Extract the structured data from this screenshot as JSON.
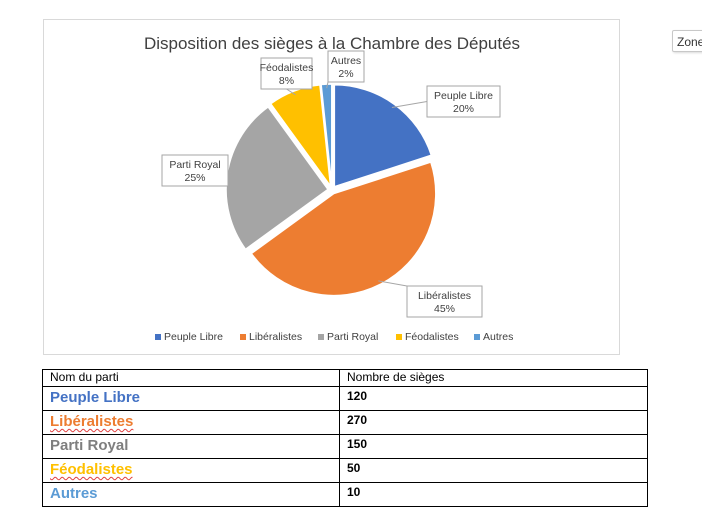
{
  "side_tab": {
    "label": "Zone"
  },
  "chart_data": {
    "type": "pie",
    "title": "Disposition des sièges à la Chambre des Députés",
    "categories": [
      "Peuple Libre",
      "Libéralistes",
      "Parti Royal",
      "Féodalistes",
      "Autres"
    ],
    "values": [
      120,
      270,
      150,
      50,
      10
    ],
    "percent_labels": [
      "20%",
      "45%",
      "25%",
      "8%",
      "2%"
    ],
    "colors": [
      "#4472c4",
      "#ed7d31",
      "#a5a5a5",
      "#ffc000",
      "#5b9bd5"
    ],
    "exploded": true,
    "legend_position": "bottom"
  },
  "table": {
    "headers": [
      "Nom du parti",
      "Nombre de sièges"
    ],
    "rows": [
      {
        "name": "Peuple Libre",
        "seats": "120",
        "color": "#4472c4",
        "spellcheck": false
      },
      {
        "name": "Libéralistes",
        "seats": "270",
        "color": "#ed7d31",
        "spellcheck": true
      },
      {
        "name": "Parti Royal",
        "seats": "150",
        "color": "#7f7f7f",
        "spellcheck": false
      },
      {
        "name": "Féodalistes",
        "seats": "50",
        "color": "#ffc000",
        "spellcheck": true
      },
      {
        "name": "Autres",
        "seats": "10",
        "color": "#5b9bd5",
        "spellcheck": false
      }
    ]
  }
}
